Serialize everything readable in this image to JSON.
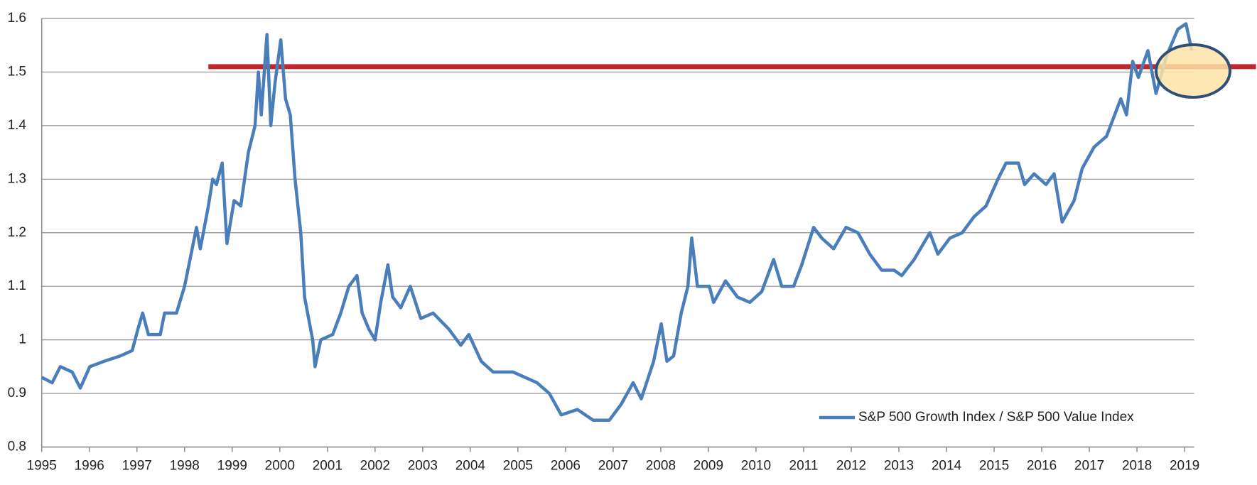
{
  "chart_data": {
    "type": "line",
    "x": [
      1995.0,
      1995.22,
      1995.39,
      1995.64,
      1995.81,
      1996.01,
      1996.31,
      1996.65,
      1996.9,
      1997.02,
      1997.12,
      1997.24,
      1997.49,
      1997.58,
      1997.83,
      1998.0,
      1998.16,
      1998.25,
      1998.33,
      1998.5,
      1998.59,
      1998.67,
      1998.79,
      1998.89,
      1999.04,
      1999.18,
      1999.34,
      1999.48,
      1999.55,
      1999.61,
      1999.73,
      1999.81,
      1999.9,
      2000.02,
      2000.12,
      2000.22,
      2000.32,
      2000.44,
      2000.52,
      2000.69,
      2000.74,
      2000.86,
      2001.11,
      2001.28,
      2001.45,
      2001.62,
      2001.73,
      2001.87,
      2002.0,
      2002.12,
      2002.27,
      2002.37,
      2002.54,
      2002.74,
      2002.96,
      2003.22,
      2003.55,
      2003.8,
      2003.97,
      2004.23,
      2004.48,
      2004.9,
      2005.15,
      2005.4,
      2005.66,
      2005.91,
      2006.25,
      2006.58,
      2006.92,
      2007.17,
      2007.42,
      2007.59,
      2007.85,
      2008.01,
      2008.13,
      2008.27,
      2008.43,
      2008.57,
      2008.65,
      2008.77,
      2009.02,
      2009.11,
      2009.36,
      2009.61,
      2009.87,
      2010.12,
      2010.37,
      2010.54,
      2010.79,
      2010.96,
      2011.21,
      2011.38,
      2011.63,
      2011.89,
      2012.14,
      2012.39,
      2012.64,
      2012.9,
      2013.06,
      2013.32,
      2013.65,
      2013.82,
      2014.07,
      2014.33,
      2014.58,
      2014.83,
      2015.08,
      2015.25,
      2015.51,
      2015.64,
      2015.84,
      2016.09,
      2016.26,
      2016.43,
      2016.68,
      2016.85,
      2017.1,
      2017.36,
      2017.66,
      2017.78,
      2017.91,
      2018.03,
      2018.23,
      2018.4,
      2018.62,
      2018.86,
      2019.03,
      2019.15
    ],
    "series": [
      {
        "name": "S&P 500 Growth Index / S&P 500 Value Index",
        "color": "#4a7ebb",
        "values": [
          0.93,
          0.92,
          0.95,
          0.94,
          0.91,
          0.95,
          0.96,
          0.97,
          0.98,
          1.02,
          1.05,
          1.01,
          1.01,
          1.05,
          1.05,
          1.1,
          1.17,
          1.21,
          1.17,
          1.25,
          1.3,
          1.29,
          1.33,
          1.18,
          1.26,
          1.25,
          1.35,
          1.4,
          1.5,
          1.42,
          1.57,
          1.4,
          1.48,
          1.56,
          1.45,
          1.42,
          1.3,
          1.2,
          1.08,
          1.0,
          0.95,
          1.0,
          1.01,
          1.05,
          1.1,
          1.12,
          1.05,
          1.02,
          1.0,
          1.07,
          1.14,
          1.08,
          1.06,
          1.1,
          1.04,
          1.05,
          1.02,
          0.99,
          1.01,
          0.96,
          0.94,
          0.94,
          0.93,
          0.92,
          0.9,
          0.86,
          0.87,
          0.85,
          0.85,
          0.88,
          0.92,
          0.89,
          0.96,
          1.03,
          0.96,
          0.97,
          1.05,
          1.1,
          1.19,
          1.1,
          1.1,
          1.07,
          1.11,
          1.08,
          1.07,
          1.09,
          1.15,
          1.1,
          1.1,
          1.14,
          1.21,
          1.19,
          1.17,
          1.21,
          1.2,
          1.16,
          1.13,
          1.13,
          1.12,
          1.15,
          1.2,
          1.16,
          1.19,
          1.2,
          1.23,
          1.25,
          1.3,
          1.33,
          1.33,
          1.29,
          1.31,
          1.29,
          1.31,
          1.22,
          1.26,
          1.32,
          1.36,
          1.38,
          1.45,
          1.42,
          1.52,
          1.49,
          1.54,
          1.46,
          1.53,
          1.58,
          1.59,
          1.54
        ]
      }
    ],
    "xlim": [
      1995,
      2019.2
    ],
    "xticks": [
      1995,
      1996,
      1997,
      1998,
      1999,
      2000,
      2001,
      2002,
      2003,
      2004,
      2005,
      2006,
      2007,
      2008,
      2009,
      2010,
      2011,
      2012,
      2013,
      2014,
      2015,
      2016,
      2017,
      2018,
      2019
    ],
    "ylim": [
      0.8,
      1.6
    ],
    "yticks": [
      0.8,
      0.9,
      1,
      1.1,
      1.2,
      1.3,
      1.4,
      1.5,
      1.6
    ],
    "grid": true,
    "legend": "lower right",
    "reference_line": {
      "y": 1.51,
      "x": [
        1998.5,
        2020.5
      ],
      "color": "#c0272d"
    }
  }
}
